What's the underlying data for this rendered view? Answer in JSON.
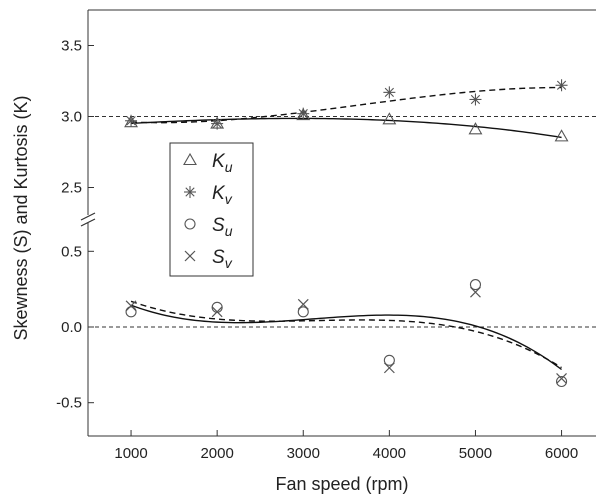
{
  "chart_data": {
    "type": "scatter",
    "xlabel": "Fan speed (rpm)",
    "ylabel": "Skewness (S) and Kurtosis (K)",
    "x_ticks": [
      1000,
      2000,
      3000,
      4000,
      5000,
      6000
    ],
    "xlim": [
      500,
      6400
    ],
    "axis_break": true,
    "upper_panel": {
      "ylim": [
        2.25,
        3.75
      ],
      "y_ticks": [
        "2.5",
        "3.0",
        "3.5"
      ],
      "reference_line": 3.0
    },
    "lower_panel": {
      "ylim": [
        -0.72,
        0.72
      ],
      "y_ticks": [
        "-0.5",
        "0.0",
        "0.5"
      ],
      "reference_line": 0.0
    },
    "legend": {
      "position": "left-center",
      "entries": [
        {
          "symbol": "triangle",
          "main": "K",
          "sub": "u"
        },
        {
          "symbol": "asterisk",
          "main": "K",
          "sub": "v"
        },
        {
          "symbol": "circle",
          "main": "S",
          "sub": "u"
        },
        {
          "symbol": "x",
          "main": "S",
          "sub": "v"
        }
      ]
    },
    "series": [
      {
        "name": "Ku",
        "panel": "upper",
        "marker": "triangle",
        "fit": "solid",
        "x": [
          1000,
          2000,
          3000,
          4000,
          5000,
          6000
        ],
        "y": [
          2.96,
          2.95,
          3.01,
          2.98,
          2.91,
          2.86
        ]
      },
      {
        "name": "Kv",
        "panel": "upper",
        "marker": "asterisk",
        "fit": "dashed",
        "x": [
          1000,
          2000,
          3000,
          4000,
          5000,
          6000
        ],
        "y": [
          2.97,
          2.95,
          3.02,
          3.17,
          3.12,
          3.22
        ]
      },
      {
        "name": "Su",
        "panel": "lower",
        "marker": "circle",
        "fit": "solid",
        "x": [
          1000,
          2000,
          3000,
          4000,
          5000,
          6000
        ],
        "y": [
          0.1,
          0.13,
          0.1,
          -0.22,
          0.28,
          -0.36
        ]
      },
      {
        "name": "Sv",
        "panel": "lower",
        "marker": "x",
        "fit": "dashed",
        "x": [
          1000,
          2000,
          3000,
          4000,
          5000,
          6000
        ],
        "y": [
          0.14,
          0.1,
          0.15,
          -0.27,
          0.23,
          -0.34
        ]
      }
    ]
  }
}
